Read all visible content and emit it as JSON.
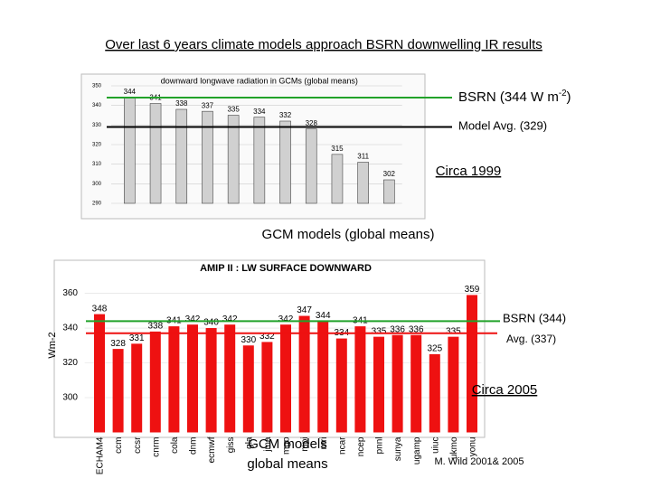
{
  "title": "Over last 6 years climate models approach BSRN downwelling IR results",
  "chart_data": [
    {
      "type": "bar",
      "title": "downward longwave radiation in GCMs (global means)",
      "values": [
        344,
        341,
        338,
        337,
        335,
        334,
        332,
        328,
        315,
        311,
        302
      ],
      "color": "#d0d0d0",
      "ylim": [
        290,
        350
      ],
      "yticks": [
        290,
        300,
        310,
        320,
        330,
        340,
        350
      ],
      "reference_lines": [
        {
          "value": 344,
          "color": "#22a22a",
          "label": "BSRN (344 W m",
          "sup": "-2",
          "tail": ")"
        },
        {
          "value": 329,
          "color": "#000000",
          "label": "Model Avg. (329)"
        }
      ],
      "annotations": [
        "Circa 1999",
        "GCM models (global means)"
      ]
    },
    {
      "type": "bar",
      "title": "AMIP II : LW SURFACE DOWNWARD",
      "categories": [
        "ECHAM4",
        "ccm",
        "ccsr",
        "cnrm",
        "cola",
        "dnm",
        "ecmwf",
        "giss",
        "gla",
        "jma",
        "mgo",
        "mpi",
        "mri",
        "ncar",
        "ncep",
        "pnnl",
        "sunya",
        "ugamp",
        "uiuc",
        "ukmo",
        "yonu"
      ],
      "values": [
        348,
        328,
        331,
        338,
        341,
        342,
        340,
        342,
        330,
        332,
        342,
        347,
        344,
        334,
        341,
        335,
        336,
        336,
        325,
        335,
        359
      ],
      "color": "#ee1111",
      "ylabel": "Wm-2",
      "ylim": [
        280,
        373
      ],
      "yticks": [
        300,
        320,
        340,
        360
      ],
      "reference_lines": [
        {
          "value": 344,
          "color": "#22a22a",
          "label": "BSRN (344)"
        },
        {
          "value": 337,
          "color": "#ee1111",
          "label": "Avg. (337)"
        }
      ],
      "annotations": [
        "Circa 2005",
        "GCM models global means",
        "M. Wild 2001& 2005"
      ]
    }
  ]
}
